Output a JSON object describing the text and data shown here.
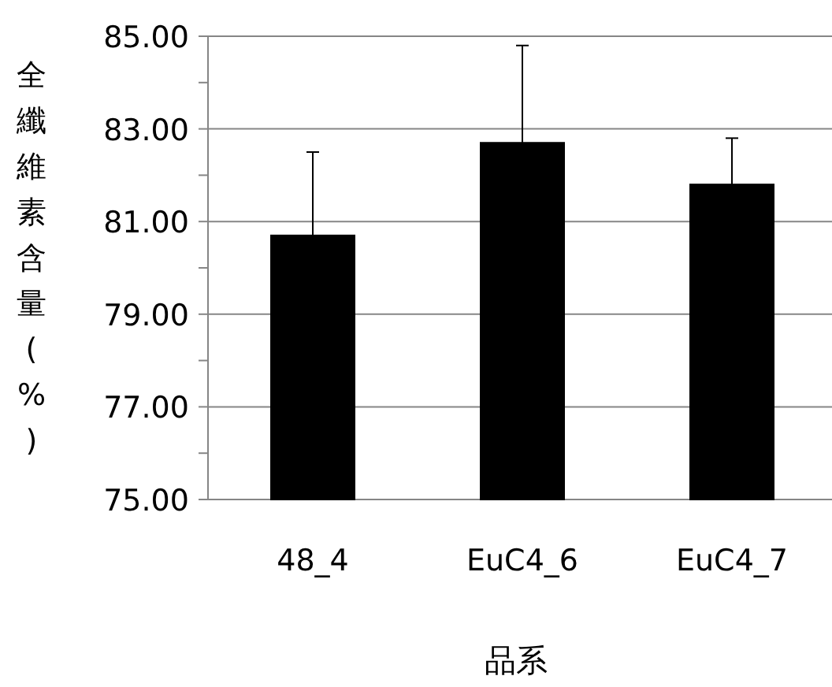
{
  "chart_data": {
    "type": "bar",
    "xlabel": "品系",
    "ylabel": "全纖維素含量(%)",
    "categories": [
      "48_4",
      "EuC4_6",
      "EuC4_7"
    ],
    "values": [
      80.7,
      82.7,
      81.8
    ],
    "errors": [
      [
        80.7,
        82.5
      ],
      [
        82.7,
        84.8
      ],
      [
        81.8,
        82.8
      ]
    ],
    "color": "#000000",
    "ylim": [
      75,
      85
    ],
    "yticks": [
      {
        "value": 75,
        "label": "75.00"
      },
      {
        "value": 76,
        "label": null
      },
      {
        "value": 77,
        "label": "77.00"
      },
      {
        "value": 78,
        "label": null
      },
      {
        "value": 79,
        "label": "79.00"
      },
      {
        "value": 80,
        "label": null
      },
      {
        "value": 81,
        "label": "81.00"
      },
      {
        "value": 82,
        "label": null
      },
      {
        "value": 83,
        "label": "83.00"
      },
      {
        "value": 84,
        "label": null
      },
      {
        "value": 85,
        "label": "85.00"
      }
    ],
    "grid": "y"
  }
}
